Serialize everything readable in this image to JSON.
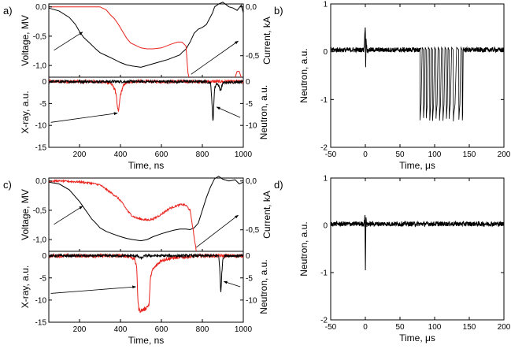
{
  "colors": {
    "black": "#000000",
    "red": "#e8221c"
  },
  "panels": [
    {
      "label": "a)",
      "type": "line",
      "xlabel": "Time, ns",
      "xlim": [
        50,
        1000
      ],
      "xticks": [
        200,
        400,
        600,
        800,
        1000
      ],
      "top": {
        "ylabel_left": "Voltage, MV",
        "ylabel_right": "Current, kA",
        "ylim_left": [
          -1.2,
          0.05
        ],
        "yticks_left": [
          0.0,
          -0.5,
          -1.0
        ],
        "ytick_labels_left": [
          "0,0",
          "-0,5",
          "-1,0"
        ],
        "ylim_right": [
          -0.72,
          0.03
        ],
        "yticks_right": [
          0.0,
          -0.5
        ],
        "ytick_labels_right": [
          "0,0",
          "-0,5"
        ],
        "series": [
          {
            "color": "black",
            "axis": "left",
            "x": [
              50,
              100,
              150,
              180,
              200,
              220,
              250,
              280,
              300,
              330,
              360,
              400,
              430,
              460,
              500,
              530,
              560,
              600,
              630,
              660,
              690,
              700,
              720,
              740,
              760,
              780,
              800,
              820,
              850,
              860,
              880,
              900,
              930,
              950,
              970,
              990,
              1000
            ],
            "y": [
              -0.02,
              -0.07,
              -0.18,
              -0.3,
              -0.42,
              -0.52,
              -0.62,
              -0.72,
              -0.78,
              -0.83,
              -0.88,
              -0.95,
              -0.99,
              -1.01,
              -1.03,
              -1.0,
              -0.97,
              -0.93,
              -0.9,
              -0.86,
              -0.82,
              -0.78,
              -0.72,
              -0.6,
              -0.45,
              -0.38,
              -0.35,
              -0.3,
              -0.1,
              0.0,
              0.05,
              0.08,
              0.0,
              -0.02,
              -0.06,
              0.03,
              -0.1
            ]
          },
          {
            "color": "red",
            "axis": "right",
            "x": [
              50,
              100,
              200,
              300,
              330,
              350,
              370,
              390,
              410,
              430,
              450,
              480,
              500,
              530,
              560,
              600,
              650,
              680,
              700,
              720,
              725,
              730,
              735
            ],
            "y": [
              0.0,
              0.0,
              0.0,
              0.0,
              -0.03,
              -0.08,
              -0.12,
              -0.18,
              -0.25,
              -0.32,
              -0.37,
              -0.4,
              -0.42,
              -0.43,
              -0.43,
              -0.42,
              -0.38,
              -0.36,
              -0.36,
              -0.4,
              -0.55,
              -0.68,
              -0.72
            ]
          },
          {
            "color": "red",
            "axis": "right",
            "x": [
              960,
              970,
              980,
              990
            ],
            "y": [
              -0.72,
              -0.66,
              -0.66,
              -0.72
            ]
          }
        ],
        "arrows": [
          {
            "from": [
              75,
              -0.74
            ],
            "to": [
              215,
              -0.43
            ],
            "axis": "left"
          },
          {
            "from": [
              745,
              -0.69
            ],
            "to": [
              975,
              -0.35
            ],
            "axis": "right"
          }
        ]
      },
      "bottom": {
        "ylabel_left": "X-ray, a.u.",
        "ylabel_right": "Neutron, a.u.",
        "ylim": [
          -15,
          1
        ],
        "yticks": [
          0,
          -5,
          -10,
          -15
        ],
        "ytick_labels_left": [
          "0",
          "-5",
          "-10",
          "-15"
        ],
        "ytick_labels_right": [
          "0",
          "-5",
          "-10"
        ],
        "series": [
          {
            "color": "red",
            "noise": 0.35,
            "x": [
              50,
              300,
              350,
              370,
              380,
              385,
              390,
              395,
              400,
              410,
              420,
              450,
              600,
              850,
              1000
            ],
            "y": [
              0,
              0,
              -0.3,
              -1.5,
              -3,
              -6,
              -7,
              -5,
              -3,
              -1.5,
              -0.5,
              0,
              0,
              0,
              0
            ]
          },
          {
            "color": "black",
            "noise": 0.3,
            "x": [
              50,
              820,
              840,
              845,
              850,
              852,
              855,
              860,
              870,
              880,
              890,
              900,
              1000
            ],
            "y": [
              0,
              0,
              -0.3,
              -3,
              -8,
              -9.5,
              -6,
              -1.5,
              -0.3,
              -1,
              -2,
              -0.3,
              0
            ]
          }
        ],
        "arrows": [
          {
            "from": [
              60,
              -9.3
            ],
            "to": [
              385,
              -7.2
            ]
          },
          {
            "from": [
              985,
              -8.2
            ],
            "to": [
              870,
              -5.8
            ]
          }
        ]
      }
    },
    {
      "label": "b)",
      "type": "line",
      "xlabel": "Time, μs",
      "ylabel": "Neutron, a.u.",
      "xlim": [
        -50,
        200
      ],
      "xticks": [
        -50,
        0,
        50,
        100,
        150,
        200
      ],
      "ylim": [
        -2,
        1
      ],
      "yticks": [
        1,
        0,
        -1,
        -2
      ],
      "series": [
        {
          "color": "black",
          "noise": 0.05,
          "x": [
            -50,
            -2,
            -1,
            0,
            0.5,
            1,
            2,
            3,
            5,
            80
          ],
          "y": [
            0.04,
            0.04,
            0.3,
            0.6,
            -0.4,
            0.3,
            0.1,
            0.0,
            0.04,
            0.04
          ]
        }
      ],
      "spikes": [
        79,
        84,
        88,
        93,
        97,
        102,
        107,
        112,
        117,
        121,
        127,
        135,
        140
      ],
      "spike_min": -1.42,
      "tail_x": 143
    },
    {
      "label": "c)",
      "type": "line",
      "xlabel": "Time, ns",
      "xlim": [
        50,
        1000
      ],
      "xticks": [
        200,
        400,
        600,
        800,
        1000
      ],
      "top": {
        "ylabel_left": "Voltage, MV",
        "ylabel_right": "Current, kA",
        "ylim_left": [
          -1.2,
          0.05
        ],
        "yticks_left": [
          0.0,
          -0.5,
          -1.0
        ],
        "ytick_labels_left": [
          "0,0",
          "-0,5",
          "-1,0"
        ],
        "ylim_right": [
          -0.72,
          0.03
        ],
        "yticks_right": [
          0.0,
          -0.5
        ],
        "ytick_labels_right": [
          "0,0",
          "-0,5"
        ],
        "series": [
          {
            "color": "black",
            "axis": "left",
            "x": [
              50,
              100,
              150,
              200,
              220,
              240,
              260,
              280,
              300,
              330,
              360,
              400,
              430,
              460,
              500,
              530,
              560,
              600,
              630,
              660,
              690,
              720,
              740,
              760,
              780,
              800,
              820,
              840,
              860,
              880,
              900,
              930,
              960,
              980,
              1000
            ],
            "y": [
              -0.02,
              -0.05,
              -0.15,
              -0.35,
              -0.45,
              -0.55,
              -0.65,
              -0.72,
              -0.8,
              -0.86,
              -0.9,
              -0.95,
              -0.98,
              -1.0,
              -1.02,
              -1.0,
              -0.95,
              -0.9,
              -0.87,
              -0.84,
              -0.82,
              -0.82,
              -0.83,
              -0.8,
              -0.72,
              -0.5,
              -0.28,
              -0.1,
              0.04,
              0.08,
              0.03,
              0.0,
              0.02,
              -0.05,
              -0.02
            ]
          },
          {
            "color": "red",
            "axis": "right",
            "noise": 0.01,
            "x": [
              50,
              100,
              200,
              250,
              300,
              320,
              340,
              360,
              380,
              400,
              420,
              440,
              460,
              480,
              500,
              530,
              560,
              600,
              640,
              680,
              700,
              720,
              740,
              755,
              765,
              770
            ],
            "y": [
              0.0,
              0.0,
              -0.01,
              -0.02,
              -0.04,
              -0.07,
              -0.1,
              -0.13,
              -0.16,
              -0.2,
              -0.26,
              -0.32,
              -0.36,
              -0.38,
              -0.39,
              -0.4,
              -0.39,
              -0.34,
              -0.28,
              -0.25,
              -0.24,
              -0.25,
              -0.3,
              -0.5,
              -0.65,
              -0.72
            ]
          }
        ],
        "arrows": [
          {
            "from": [
              75,
              -0.74
            ],
            "to": [
              215,
              -0.43
            ],
            "axis": "left"
          },
          {
            "from": [
              770,
              -0.68
            ],
            "to": [
              975,
              -0.35
            ],
            "axis": "right"
          }
        ]
      },
      "bottom": {
        "ylabel_left": "X-ray, a.u.",
        "ylabel_right": "Neutron, a.u.",
        "ylim": [
          -15,
          1
        ],
        "yticks": [
          0,
          -5,
          -10,
          -15
        ],
        "ytick_labels_left": [
          "0",
          "-5",
          "-10",
          "-15"
        ],
        "ytick_labels_right": [
          "0",
          "-5",
          "-10"
        ],
        "series": [
          {
            "color": "red",
            "noise": 0.4,
            "x": [
              50,
              300,
              420,
              450,
              470,
              480,
              485,
              490,
              500,
              520,
              540,
              545,
              550,
              560,
              580,
              600,
              650,
              700,
              800,
              1000
            ],
            "y": [
              0,
              0,
              0,
              -0.2,
              -0.8,
              -3,
              -10,
              -12.2,
              -12.4,
              -12,
              -11,
              -6,
              -4,
              -3,
              -2,
              -1,
              -0.5,
              -0.3,
              0,
              0
            ]
          },
          {
            "color": "black",
            "noise": 0.3,
            "x": [
              50,
              480,
              500,
              520,
              880,
              885,
              890,
              895,
              900,
              910,
              1000
            ],
            "y": [
              0,
              0,
              -0.6,
              0,
              0,
              -3,
              -8.7,
              -4,
              -0.6,
              0,
              0
            ]
          }
        ],
        "arrows": [
          {
            "from": [
              60,
              -8.5
            ],
            "to": [
              475,
              -7.0
            ]
          },
          {
            "from": [
              985,
              -7.0
            ],
            "to": [
              905,
              -5.8
            ]
          }
        ]
      }
    },
    {
      "label": "d)",
      "type": "line",
      "xlabel": "Time, μs",
      "ylabel": "Neutron, a.u.",
      "xlim": [
        -50,
        200
      ],
      "xticks": [
        -50,
        0,
        50,
        100,
        150,
        200
      ],
      "ylim": [
        -2,
        1
      ],
      "yticks": [
        1,
        0,
        -1,
        -2
      ],
      "series": [
        {
          "color": "black",
          "noise": 0.05,
          "x": [
            -50,
            -2,
            -1,
            -0.3,
            0,
            0.3,
            1,
            2,
            3,
            5,
            200
          ],
          "y": [
            0.03,
            0.03,
            0.1,
            0.3,
            -1.32,
            -0.5,
            0.2,
            0.0,
            0.03,
            0.03,
            0.03
          ]
        }
      ],
      "spikes": [],
      "spike_min": 0,
      "tail_x": 200
    }
  ]
}
